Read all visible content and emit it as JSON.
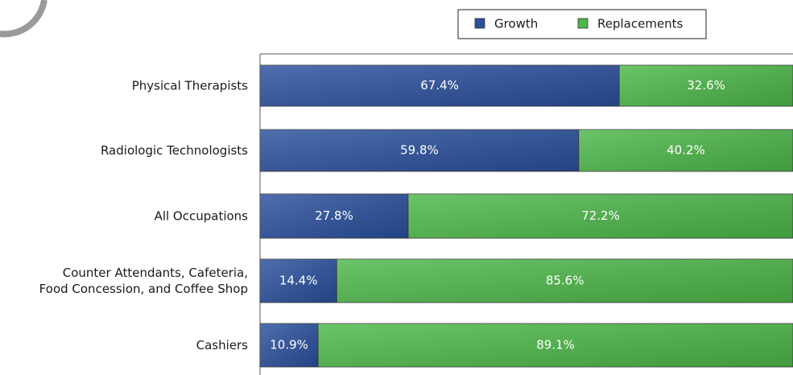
{
  "chart_data": {
    "type": "stacked-barh",
    "categories": [
      "Physical Therapists",
      "Radiologic Technologists",
      "All Occupations",
      "Counter Attendants, Cafeteria, Food Concession, and Coffee Shop",
      "Cashiers"
    ],
    "series": [
      {
        "name": "Growth",
        "color": "#2a4f9c",
        "values": [
          67.4,
          59.8,
          27.8,
          14.4,
          10.9
        ],
        "value_labels": [
          "67.4%",
          "59.8%",
          "27.8%",
          "14.4%",
          "10.9%"
        ]
      },
      {
        "name": "Replacements",
        "color": "#4cb748",
        "values": [
          32.6,
          40.2,
          72.2,
          85.6,
          89.1
        ],
        "value_labels": [
          "32.6%",
          "40.2%",
          "72.2%",
          "85.6%",
          "89.1%"
        ]
      }
    ],
    "xlim": [
      0,
      100
    ]
  }
}
